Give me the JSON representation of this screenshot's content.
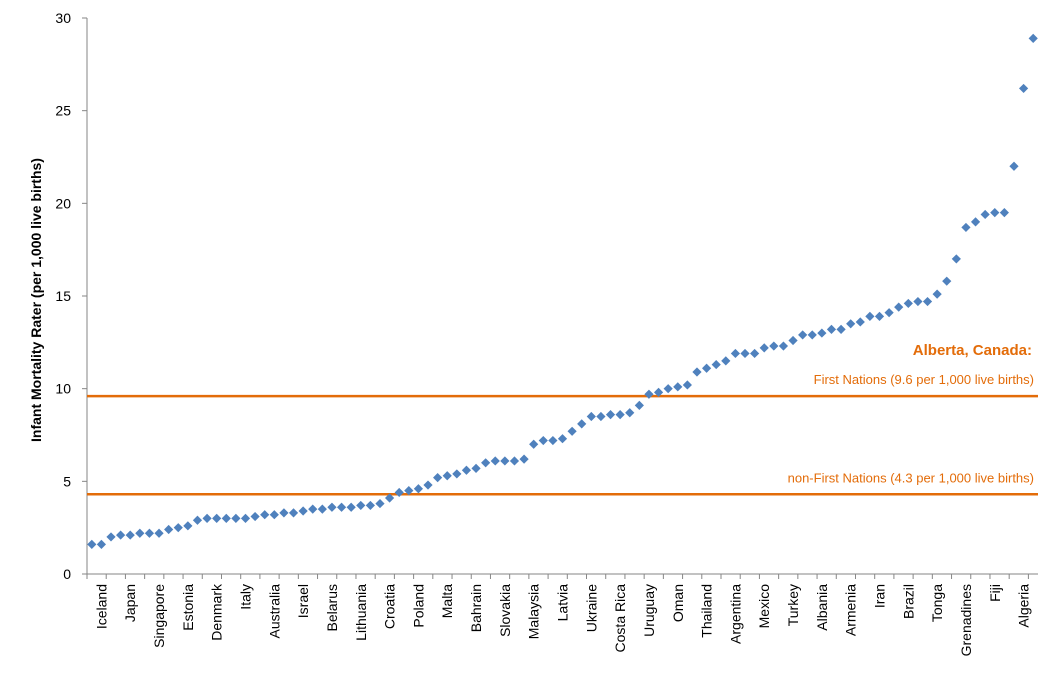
{
  "chart_data": {
    "type": "scatter",
    "title": "",
    "ylabel": "Infant Mortality Rater (per 1,000 live births)",
    "xlabel": "",
    "ylim": [
      0,
      30
    ],
    "yticks": [
      0,
      5,
      10,
      15,
      20,
      25,
      30
    ],
    "grid": false,
    "marker": "diamond",
    "series_color": "#4F81BD",
    "annotation_color": "#E36C09",
    "x_tick_labels": [
      "Iceland",
      "Japan",
      "Singapore",
      "Estonia",
      "Denmark",
      "Italy",
      "Australia",
      "Israel",
      "Belarus",
      "Lithuania",
      "Croatia",
      "Poland",
      "Malta",
      "Bahrain",
      "Slovakia",
      "Malaysia",
      "Latvia",
      "Ukraine",
      "Costa Rica",
      "Uruguay",
      "Oman",
      "Thailand",
      "Argentina",
      "Mexico",
      "Turkey",
      "Albania",
      "Armenia",
      "Iran",
      "Brazil",
      "Tonga",
      "Grenadines",
      "Fiji",
      "Algeria"
    ],
    "values": [
      1.6,
      1.6,
      2.0,
      2.1,
      2.1,
      2.2,
      2.2,
      2.2,
      2.4,
      2.5,
      2.6,
      2.9,
      3.0,
      3.0,
      3.0,
      3.0,
      3.0,
      3.1,
      3.2,
      3.2,
      3.3,
      3.3,
      3.4,
      3.5,
      3.5,
      3.6,
      3.6,
      3.6,
      3.7,
      3.7,
      3.8,
      4.1,
      4.4,
      4.5,
      4.6,
      4.8,
      5.2,
      5.3,
      5.4,
      5.6,
      5.7,
      6.0,
      6.1,
      6.1,
      6.1,
      6.2,
      7.0,
      7.2,
      7.2,
      7.3,
      7.7,
      8.1,
      8.5,
      8.5,
      8.6,
      8.6,
      8.7,
      9.1,
      9.7,
      9.8,
      10.0,
      10.1,
      10.2,
      10.9,
      11.1,
      11.3,
      11.5,
      11.9,
      11.9,
      11.9,
      12.2,
      12.3,
      12.3,
      12.6,
      12.9,
      12.9,
      13.0,
      13.2,
      13.2,
      13.5,
      13.6,
      13.9,
      13.9,
      14.1,
      14.4,
      14.6,
      14.7,
      14.7,
      15.1,
      15.8,
      17.0,
      18.7,
      19.0,
      19.4,
      19.5,
      19.5,
      22.0,
      26.2,
      28.9
    ],
    "reference_lines": [
      {
        "value": 9.6,
        "label": "First Nations (9.6 per 1,000 live births)"
      },
      {
        "value": 4.3,
        "label": "non-First Nations (4.3 per 1,000 live births)"
      }
    ],
    "annotation_title": "Alberta, Canada:"
  }
}
